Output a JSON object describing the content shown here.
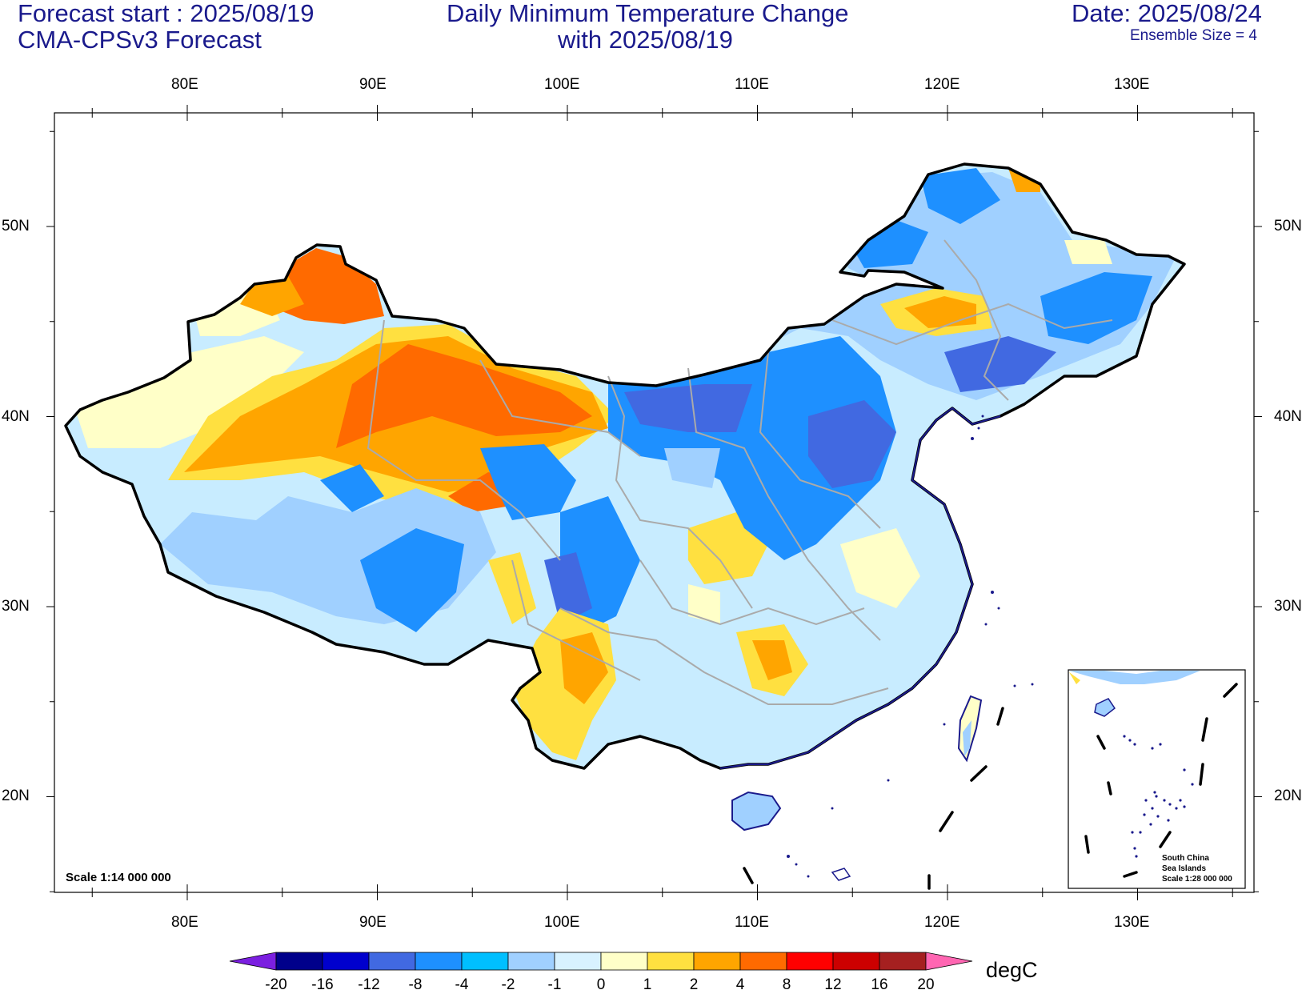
{
  "header": {
    "forecast_start": "Forecast start : 2025/08/19",
    "model": "CMA-CPSv3 Forecast",
    "title_line1": "Daily Minimum Temperature Change",
    "title_line2": "with 2025/08/19",
    "date": "Date: 2025/08/24",
    "ensemble": "Ensemble Size = 4"
  },
  "axes": {
    "lon_labels": [
      "80E",
      "90E",
      "100E",
      "110E",
      "120E",
      "130E"
    ],
    "lat_labels": [
      "50N",
      "40N",
      "30N",
      "20N"
    ],
    "lon_range": [
      75,
      135
    ],
    "lat_range": [
      15,
      56
    ]
  },
  "map": {
    "scale_label": "Scale 1:14 000 000",
    "inset_title": "South China",
    "inset_title2": "Sea Islands",
    "inset_scale": "Scale 1:28 000 000"
  },
  "colorbar": {
    "unit": "degC",
    "levels": [
      "-20",
      "-16",
      "-12",
      "-8",
      "-4",
      "-2",
      "-1",
      "0",
      "1",
      "2",
      "4",
      "8",
      "12",
      "16",
      "20"
    ],
    "colors": [
      "#7b1fe0",
      "#00008b",
      "#0000cd",
      "#4169e1",
      "#1e90ff",
      "#00bfff",
      "#a0d0ff",
      "#d8f2ff",
      "#ffffc8",
      "#ffe040",
      "#ffa500",
      "#ff6a00",
      "#ff0000",
      "#cc0000",
      "#a52020",
      "#ff66b2"
    ]
  }
}
